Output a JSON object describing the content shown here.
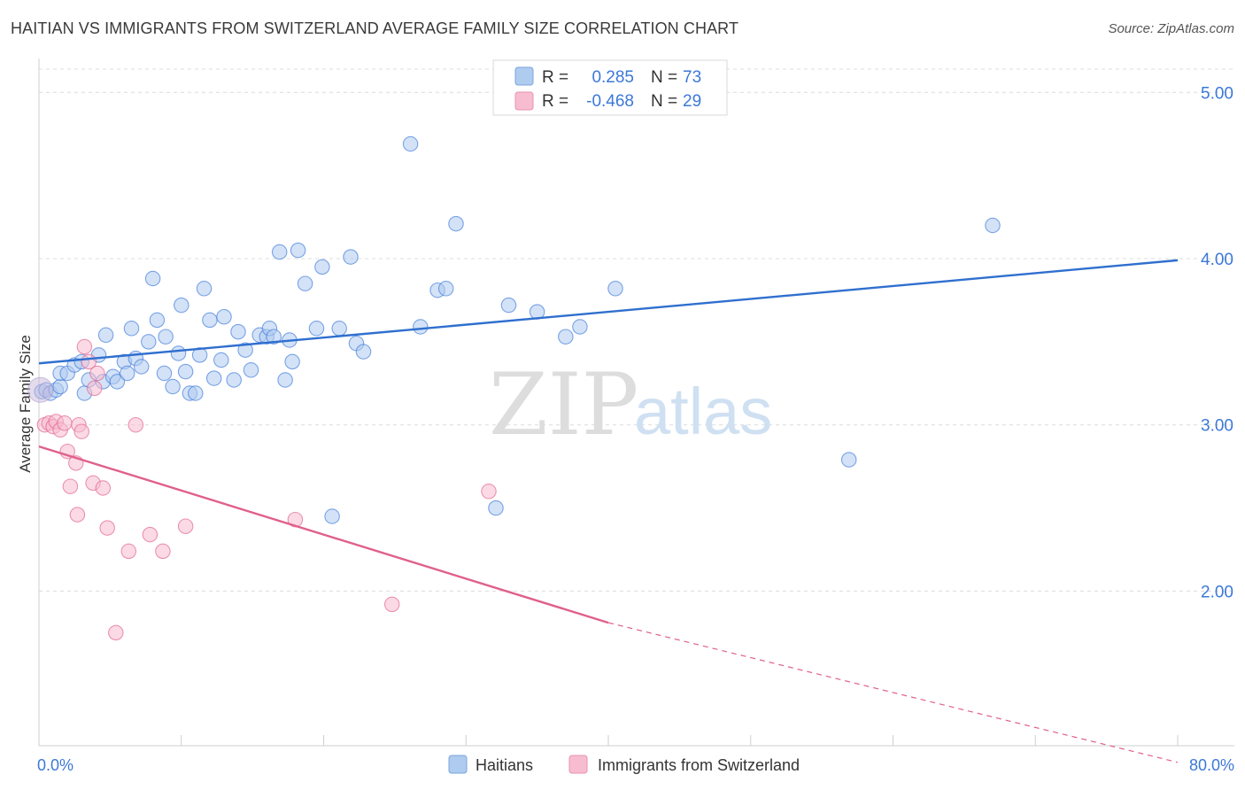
{
  "title": "HAITIAN VS IMMIGRANTS FROM SWITZERLAND AVERAGE FAMILY SIZE CORRELATION CHART",
  "source": "Source: ZipAtlas.com",
  "watermark": {
    "zip": "ZIP",
    "atlas": "atlas"
  },
  "legend": {
    "r_label": "R =",
    "n_label": "N =",
    "entries": [
      {
        "r": "0.285",
        "n": "73",
        "color": "#aecbf0"
      },
      {
        "r": "-0.468",
        "n": "29",
        "color": "#f8bcd0"
      }
    ]
  },
  "bottom_legend": [
    {
      "label": "Haitians",
      "color": "#aecbf0"
    },
    {
      "label": "Immigrants from Switzerland",
      "color": "#f8bcd0"
    }
  ],
  "chart_data": {
    "type": "scatter",
    "title": "HAITIAN VS IMMIGRANTS FROM SWITZERLAND AVERAGE FAMILY SIZE CORRELATION CHART",
    "xlabel": "",
    "ylabel": "Average Family Size",
    "xlim": [
      0,
      80
    ],
    "ylim": [
      1.07,
      5.14
    ],
    "x_tick_labels": [
      {
        "value": 0,
        "label": "0.0%"
      },
      {
        "value": 80,
        "label": "80.0%"
      }
    ],
    "y_ticks": [
      {
        "value": 2.0,
        "label": "2.00"
      },
      {
        "value": 3.0,
        "label": "3.00"
      },
      {
        "value": 4.0,
        "label": "4.00"
      },
      {
        "value": 5.0,
        "label": "5.00"
      }
    ],
    "grid": true,
    "legend_position": "top-center",
    "series": [
      {
        "name": "Haitians",
        "color": "#3c78d8",
        "fill": "#aecbf0",
        "trend": {
          "x0": 0,
          "y0": 3.37,
          "x1": 80,
          "y1": 3.99
        },
        "points": [
          [
            0.2,
            3.2
          ],
          [
            0.5,
            3.21
          ],
          [
            0.8,
            3.19
          ],
          [
            1.2,
            3.21
          ],
          [
            1.5,
            3.23
          ],
          [
            1.5,
            3.31
          ],
          [
            2.0,
            3.31
          ],
          [
            2.5,
            3.36
          ],
          [
            3.0,
            3.38
          ],
          [
            3.2,
            3.19
          ],
          [
            3.5,
            3.27
          ],
          [
            4.2,
            3.42
          ],
          [
            4.5,
            3.26
          ],
          [
            4.7,
            3.54
          ],
          [
            5.2,
            3.29
          ],
          [
            5.5,
            3.26
          ],
          [
            6.0,
            3.38
          ],
          [
            6.2,
            3.31
          ],
          [
            6.5,
            3.58
          ],
          [
            6.8,
            3.4
          ],
          [
            7.2,
            3.35
          ],
          [
            7.7,
            3.5
          ],
          [
            8.0,
            3.88
          ],
          [
            8.3,
            3.63
          ],
          [
            8.8,
            3.31
          ],
          [
            8.9,
            3.53
          ],
          [
            9.4,
            3.23
          ],
          [
            9.8,
            3.43
          ],
          [
            10.0,
            3.72
          ],
          [
            10.3,
            3.32
          ],
          [
            10.6,
            3.19
          ],
          [
            11.0,
            3.19
          ],
          [
            11.3,
            3.42
          ],
          [
            11.6,
            3.82
          ],
          [
            12.0,
            3.63
          ],
          [
            12.3,
            3.28
          ],
          [
            12.8,
            3.39
          ],
          [
            13.0,
            3.65
          ],
          [
            13.7,
            3.27
          ],
          [
            14.0,
            3.56
          ],
          [
            14.5,
            3.45
          ],
          [
            14.9,
            3.33
          ],
          [
            15.5,
            3.54
          ],
          [
            16.0,
            3.53
          ],
          [
            16.2,
            3.58
          ],
          [
            16.5,
            3.53
          ],
          [
            16.9,
            4.04
          ],
          [
            17.3,
            3.27
          ],
          [
            17.6,
            3.51
          ],
          [
            17.8,
            3.38
          ],
          [
            18.2,
            4.05
          ],
          [
            18.7,
            3.85
          ],
          [
            19.5,
            3.58
          ],
          [
            19.9,
            3.95
          ],
          [
            20.6,
            2.45
          ],
          [
            21.1,
            3.58
          ],
          [
            21.9,
            4.01
          ],
          [
            22.3,
            3.49
          ],
          [
            22.8,
            3.44
          ],
          [
            26.1,
            4.69
          ],
          [
            26.8,
            3.59
          ],
          [
            28.0,
            3.81
          ],
          [
            28.6,
            3.82
          ],
          [
            29.3,
            4.21
          ],
          [
            32.1,
            2.5
          ],
          [
            33.0,
            3.72
          ],
          [
            35.0,
            3.68
          ],
          [
            37.0,
            3.53
          ],
          [
            38.0,
            3.59
          ],
          [
            40.5,
            3.82
          ],
          [
            56.9,
            2.79
          ],
          [
            67.0,
            4.2
          ]
        ]
      },
      {
        "name": "Immigrants from Switzerland",
        "color": "#e0608c",
        "fill": "#f8bcd0",
        "trend": {
          "x0": 0,
          "y0": 2.87,
          "x1": 40,
          "y1": 1.81,
          "dashed_to": {
            "x": 80,
            "y": 0.97
          }
        },
        "points": [
          [
            0.4,
            3.0
          ],
          [
            0.7,
            3.01
          ],
          [
            1.0,
            2.99
          ],
          [
            1.2,
            3.02
          ],
          [
            1.5,
            2.97
          ],
          [
            1.8,
            3.01
          ],
          [
            2.0,
            2.84
          ],
          [
            2.2,
            2.63
          ],
          [
            2.6,
            2.77
          ],
          [
            2.7,
            2.46
          ],
          [
            2.8,
            3.0
          ],
          [
            3.0,
            2.96
          ],
          [
            3.2,
            3.47
          ],
          [
            3.5,
            3.38
          ],
          [
            3.8,
            2.65
          ],
          [
            3.9,
            3.22
          ],
          [
            4.1,
            3.31
          ],
          [
            4.5,
            2.62
          ],
          [
            4.8,
            2.38
          ],
          [
            5.4,
            1.75
          ],
          [
            6.3,
            2.24
          ],
          [
            6.8,
            3.0
          ],
          [
            7.8,
            2.34
          ],
          [
            8.7,
            2.24
          ],
          [
            10.3,
            2.39
          ],
          [
            18.0,
            2.43
          ],
          [
            24.8,
            1.92
          ],
          [
            31.6,
            2.6
          ]
        ]
      }
    ]
  }
}
